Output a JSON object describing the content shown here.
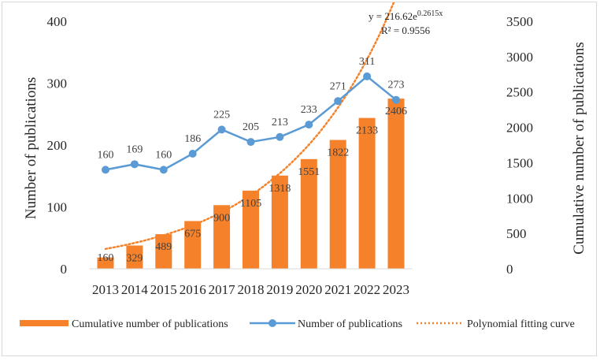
{
  "chart_data": {
    "type": "bar+line",
    "categories": [
      "2013",
      "2014",
      "2015",
      "2016",
      "2017",
      "2018",
      "2019",
      "2020",
      "2021",
      "2022",
      "2023"
    ],
    "series": [
      {
        "name": "Cumulative number of publications",
        "kind": "bar",
        "axis": "right",
        "color": "#f5822a",
        "values": [
          160,
          329,
          489,
          675,
          900,
          1105,
          1318,
          1551,
          1822,
          2133,
          2406
        ]
      },
      {
        "name": "Number of publications",
        "kind": "line",
        "axis": "left",
        "color": "#5b9bd5",
        "values": [
          160,
          169,
          160,
          186,
          225,
          205,
          213,
          233,
          271,
          311,
          273
        ]
      },
      {
        "name": "Polynomial fitting curve",
        "kind": "trendline",
        "axis": "right",
        "color": "#f5822a",
        "fit": {
          "a": 216.62,
          "b": 0.2615
        }
      }
    ],
    "ylabel_left": "Number of publications",
    "ylabel_right": "Cumulative number of publications",
    "ylim_left": [
      0,
      400
    ],
    "yticks_left": [
      "0",
      "100",
      "200",
      "300",
      "400"
    ],
    "ylim_right": [
      0,
      3500
    ],
    "yticks_right": [
      "0",
      "500",
      "1000",
      "1500",
      "2000",
      "2500",
      "3000",
      "3500"
    ],
    "equation": {
      "prefix": "y = 216.62e",
      "exponent": "0.2615x",
      "r2": "R² = 0.9556"
    },
    "legend": [
      "Cumulative number of publications",
      "Number of publications",
      "Polynomial fitting curve"
    ],
    "legend_position": "bottom",
    "grid": false
  }
}
